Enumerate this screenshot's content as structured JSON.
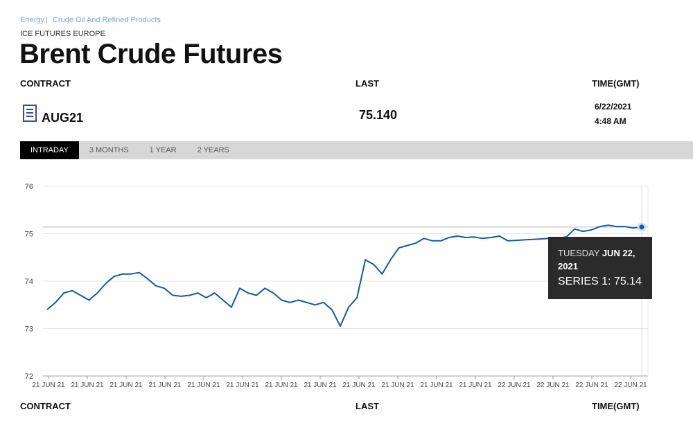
{
  "breadcrumb": [
    "Energy",
    "Crude Oil And Refined Products"
  ],
  "exchange": "ICE FUTURES EUROPE",
  "title": "Brent Crude Futures",
  "columns": [
    "CONTRACT",
    "LAST",
    "TIME(GMT)"
  ],
  "row": {
    "contract": "AUG21",
    "last": "75.140",
    "date": "6/22/2021",
    "time": "4:48 AM"
  },
  "tabs": [
    "INTRADAY",
    "3 MONTHS",
    "1 YEAR",
    "2 YEARS"
  ],
  "chart_data": {
    "type": "line",
    "x_labels": [
      "21 JUN 21",
      "21 JUN 21",
      "21 JUN 21",
      "21 JUN 21",
      "21 JUN 21",
      "21 JUN 21",
      "21 JUN 21",
      "21 JUN 21",
      "21 JUN 21",
      "21 JUN 21",
      "21 JUN 21",
      "21 JUN 21",
      "22 JUN 21",
      "22 JUN 21",
      "22 JUN 21",
      "22 JUN 21"
    ],
    "ylim": [
      72,
      76
    ],
    "yticks": [
      72,
      73,
      74,
      75,
      76
    ],
    "grid": true,
    "last_line": 75.14,
    "series": [
      {
        "name": "SERIES 1",
        "color": "#0d5aa7",
        "values": [
          73.4,
          73.55,
          73.75,
          73.8,
          73.7,
          73.6,
          73.75,
          73.95,
          74.1,
          74.15,
          74.15,
          74.18,
          74.05,
          73.9,
          73.85,
          73.7,
          73.68,
          73.7,
          73.75,
          73.65,
          73.75,
          73.6,
          73.45,
          73.85,
          73.75,
          73.7,
          73.85,
          73.75,
          73.6,
          73.55,
          73.6,
          73.55,
          73.5,
          73.55,
          73.4,
          73.05,
          73.45,
          73.65,
          74.45,
          74.35,
          74.15,
          74.45,
          74.7,
          74.75,
          74.8,
          74.9,
          74.85,
          74.85,
          74.92,
          74.95,
          74.92,
          74.93,
          74.9,
          74.92,
          74.95,
          74.85,
          74.86,
          74.87,
          74.88,
          74.89,
          74.9,
          74.91,
          74.93,
          75.1,
          75.05,
          75.08,
          75.15,
          75.18,
          75.15,
          75.15,
          75.12,
          75.14
        ]
      }
    ],
    "tooltip": {
      "day": "TUESDAY",
      "date": "JUN 22,",
      "year": "2021",
      "label": "SERIES 1: 75.14"
    }
  },
  "footer_columns": [
    "CONTRACT",
    "LAST",
    "TIME(GMT)"
  ]
}
